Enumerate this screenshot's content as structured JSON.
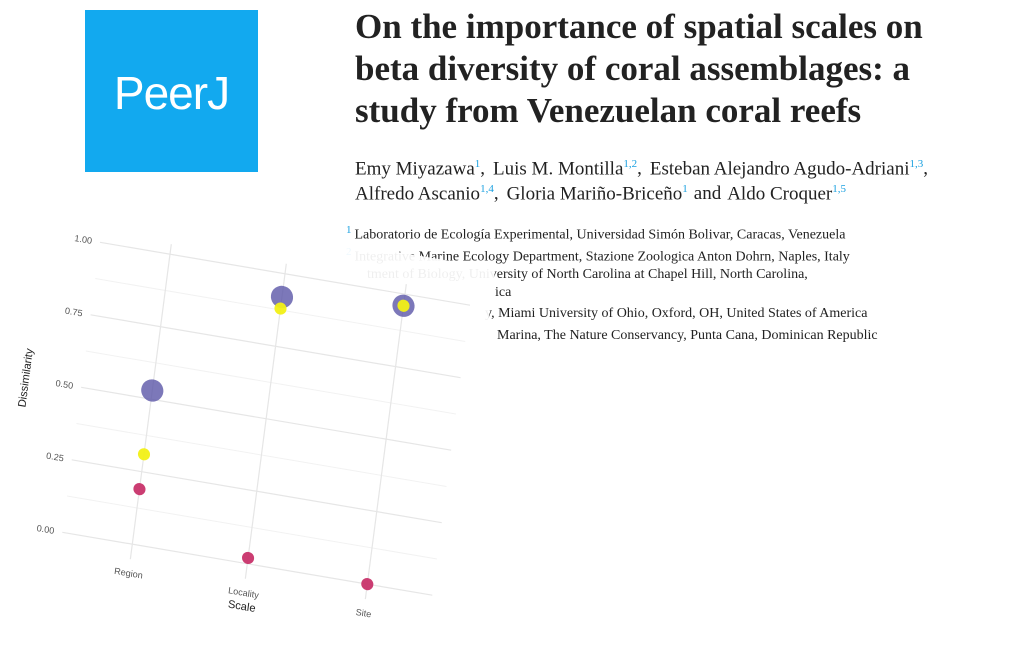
{
  "logo": "PeerJ",
  "title": [
    "On the importance of spatial scales on",
    "beta diversity of coral assemblages: a",
    "study from Venezuelan coral reefs"
  ],
  "authors": [
    [
      {
        "name": "Emy Miyazawa",
        "aff": "1",
        "sep": ","
      },
      {
        "name": "Luis M. Montilla",
        "aff": "1,2",
        "sep": ","
      },
      {
        "name": "Esteban Alejandro Agudo-Adriani",
        "aff": "1,3",
        "sep": ","
      }
    ],
    [
      {
        "name": "Alfredo Ascanio",
        "aff": "1,4",
        "sep": ","
      },
      {
        "name": "Gloria Mariño-Briceño",
        "aff": "1",
        "sep": "and"
      },
      {
        "name": "Aldo Croquer",
        "aff": "1,5"
      }
    ]
  ],
  "affiliations": [
    {
      "num": "1",
      "text": "Laboratorio de Ecología Experimental, Universidad Simón Bolivar, Caracas, Venezuela"
    },
    {
      "num": "2",
      "text": "Integrative Marine Ecology Department, Stazione Zoologica Anton Dohrn, Naples, Italy"
    },
    {
      "text": "tment of Biology, University of North Carolina at Chapel Hill, North Carolina,"
    },
    {
      "text": "ica"
    },
    {
      "text": "y, Miami University of Ohio, Oxford, OH, United States of America"
    },
    {
      "text": "Marina, The Nature Conservancy, Punta Cana, Dominican Republic"
    }
  ],
  "chart_data": {
    "type": "scatter",
    "x_label": "Scale",
    "y_label": "Dissimilarity",
    "categories": [
      "Region",
      "Locality",
      "Site"
    ],
    "ylim": [
      0,
      1
    ],
    "yticks": [
      {
        "value": 0,
        "label": "0.00"
      },
      {
        "value": 0.25,
        "label": "0.25"
      },
      {
        "value": 0.5,
        "label": "0.50"
      },
      {
        "value": 0.75,
        "label": "0.75"
      },
      {
        "value": 1,
        "label": "1.00"
      }
    ],
    "grid": true,
    "series": [
      {
        "color": "#5b56a8",
        "size": 11,
        "values": [
          0.53,
          0.92,
          0.96
        ]
      },
      {
        "color": "#f2f016",
        "size": 6,
        "values": [
          0.31,
          0.88,
          0.96
        ]
      },
      {
        "color": "#c8336a",
        "size": 6,
        "values": [
          0.19,
          0.02,
          0.0
        ]
      }
    ]
  }
}
